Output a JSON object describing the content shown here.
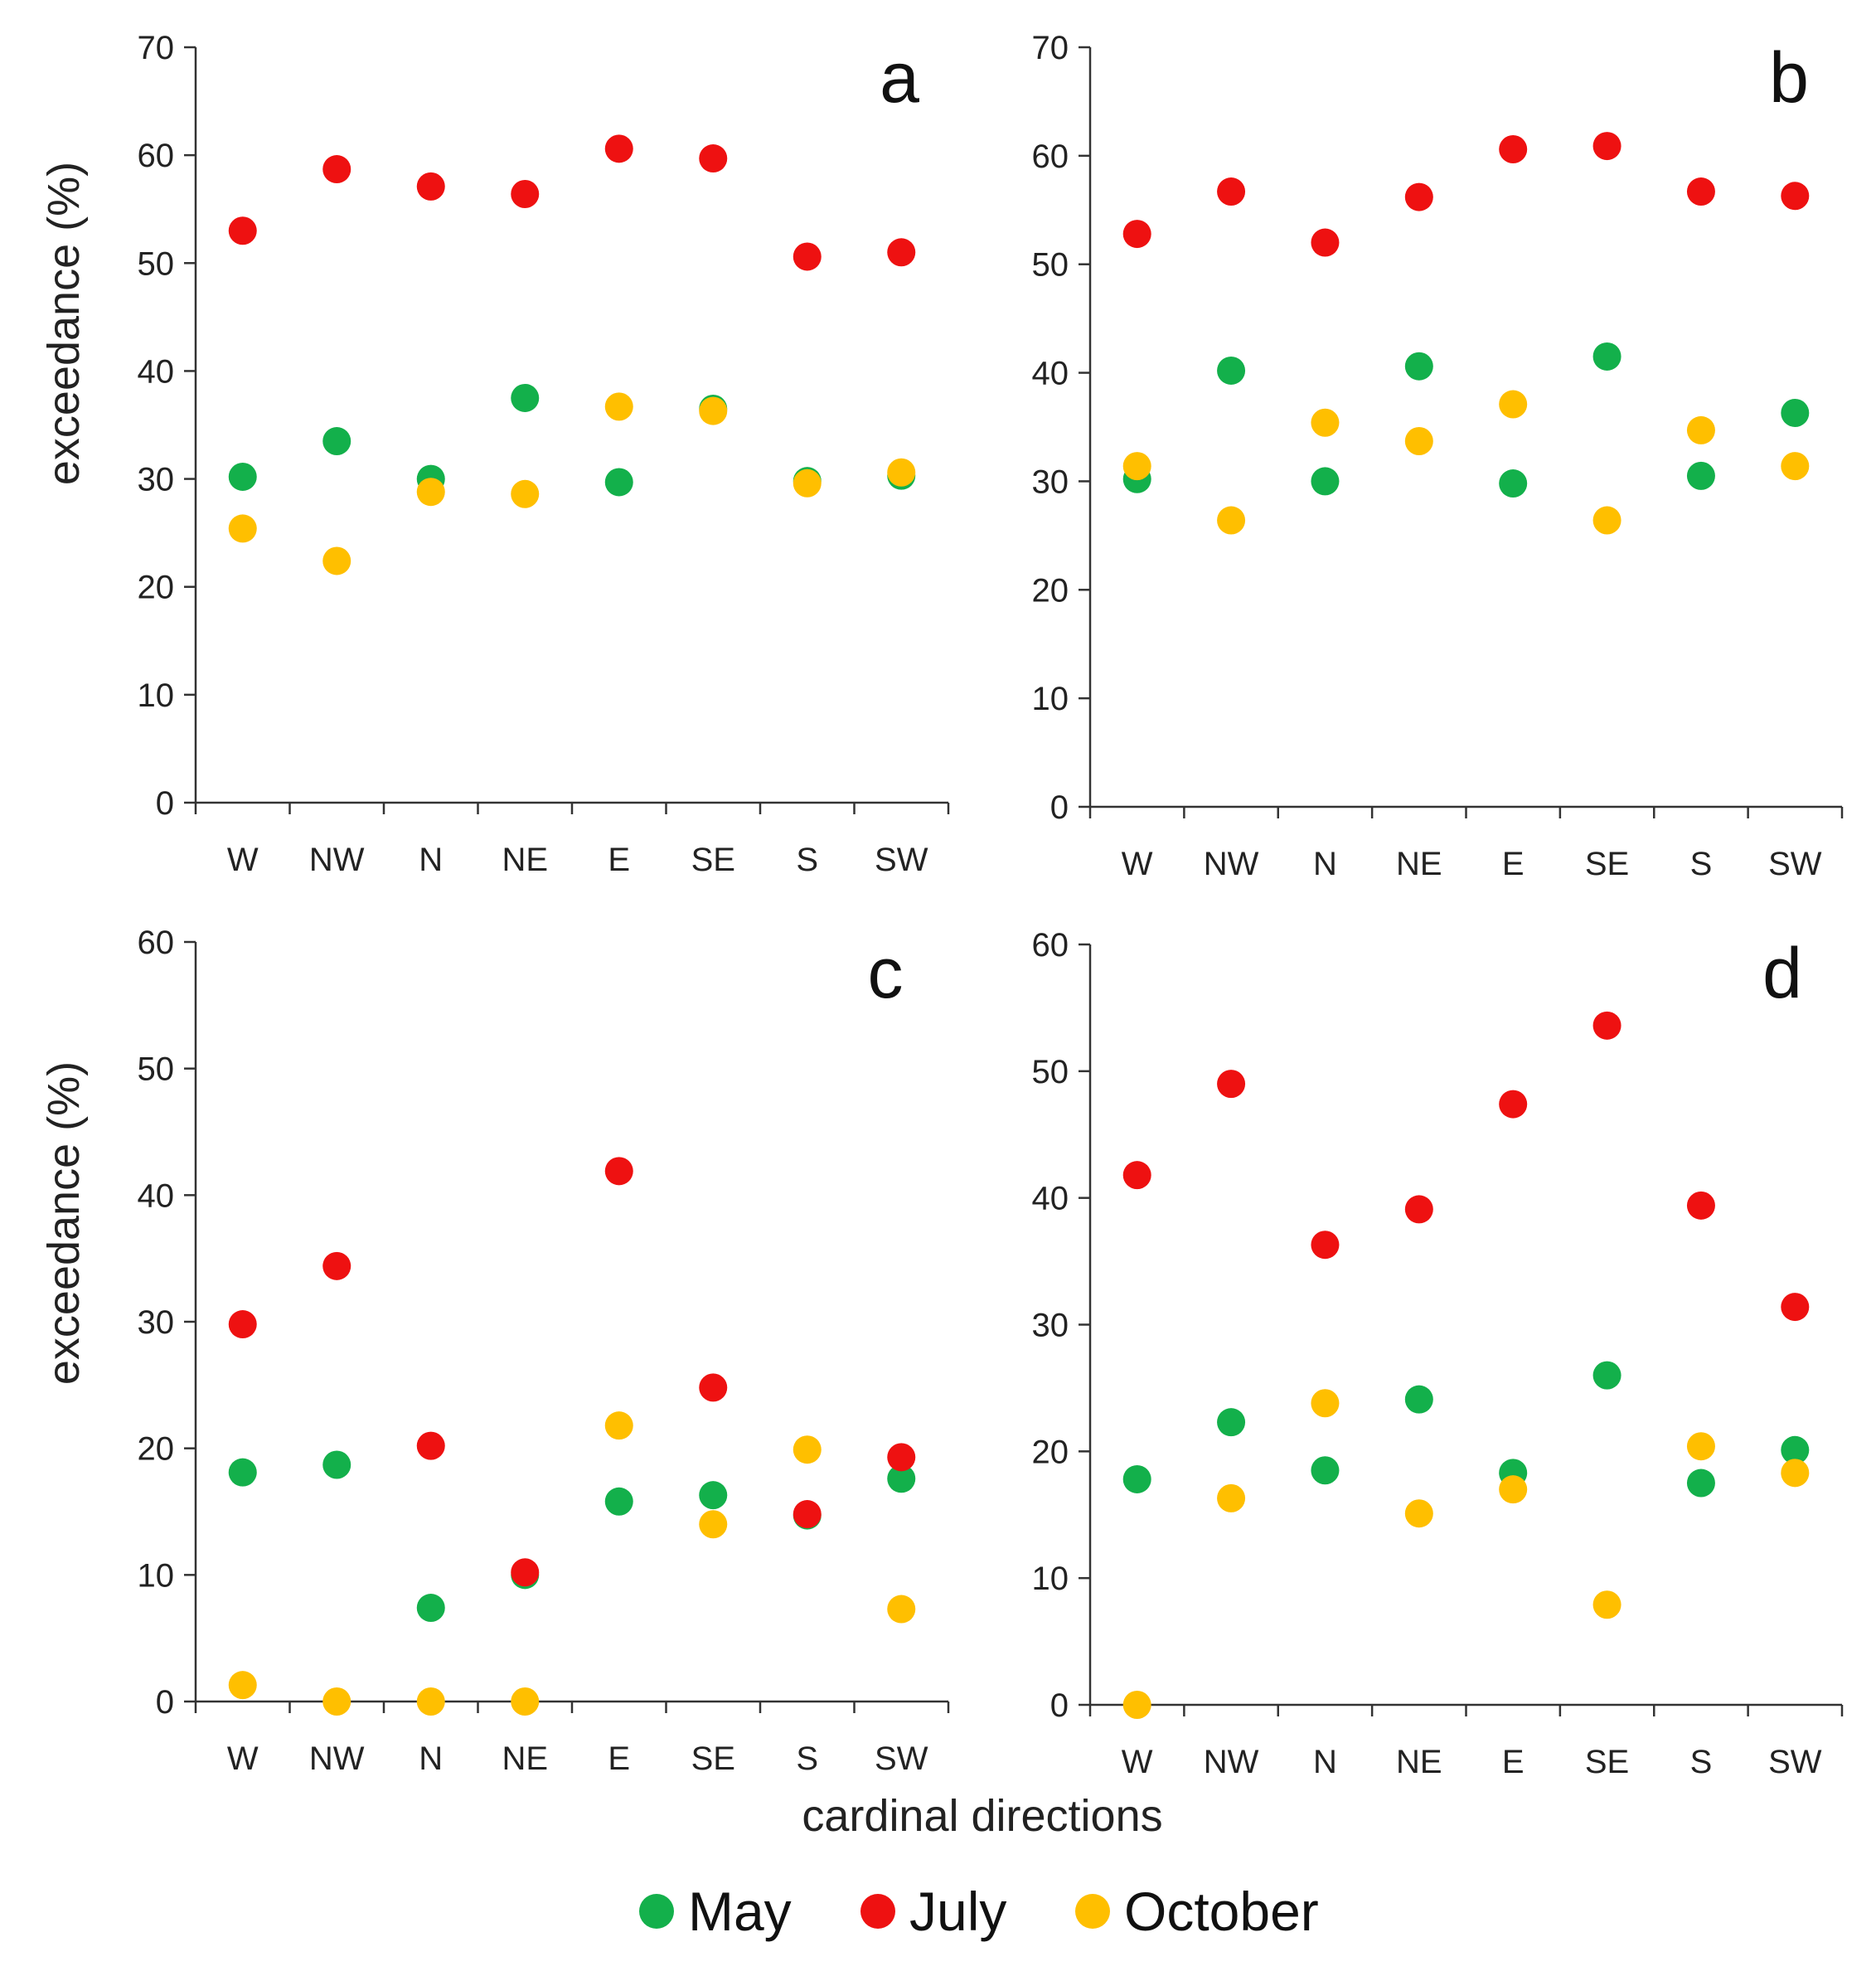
{
  "colors": {
    "May": "#13b04b",
    "July": "#ee1111",
    "October": "#ffbf00",
    "axis": "#333333"
  },
  "chart_data": [
    {
      "type": "scatter",
      "panel": "a",
      "categories": [
        "W",
        "NW",
        "N",
        "NE",
        "E",
        "SE",
        "S",
        "SW"
      ],
      "ylabel": "exceedance (%)",
      "xlabel": "",
      "ylim": [
        0,
        70
      ],
      "yticks": [
        0,
        10,
        20,
        30,
        40,
        50,
        60,
        70
      ],
      "series": [
        {
          "name": "May",
          "values": [
            30.2,
            33.5,
            30.0,
            37.5,
            29.7,
            36.5,
            29.8,
            30.3
          ]
        },
        {
          "name": "July",
          "values": [
            53.0,
            58.7,
            57.1,
            56.4,
            60.6,
            59.7,
            50.6,
            51.0
          ]
        },
        {
          "name": "October",
          "values": [
            25.4,
            22.4,
            28.8,
            28.6,
            36.7,
            36.3,
            29.6,
            30.6
          ]
        }
      ]
    },
    {
      "type": "scatter",
      "panel": "b",
      "categories": [
        "W",
        "NW",
        "N",
        "NE",
        "E",
        "SE",
        "S",
        "SW"
      ],
      "ylabel": "",
      "xlabel": "",
      "ylim": [
        0,
        70
      ],
      "yticks": [
        0,
        10,
        20,
        30,
        40,
        50,
        60,
        70
      ],
      "series": [
        {
          "name": "May",
          "values": [
            30.2,
            40.2,
            30.0,
            40.6,
            29.8,
            41.5,
            30.5,
            36.3
          ]
        },
        {
          "name": "July",
          "values": [
            52.8,
            56.7,
            52.0,
            56.2,
            60.6,
            60.9,
            56.7,
            56.3
          ]
        },
        {
          "name": "October",
          "values": [
            31.4,
            26.4,
            35.4,
            33.7,
            37.1,
            26.4,
            34.7,
            31.4
          ]
        }
      ]
    },
    {
      "type": "scatter",
      "panel": "c",
      "categories": [
        "W",
        "NW",
        "N",
        "NE",
        "E",
        "SE",
        "S",
        "SW"
      ],
      "ylabel": "exceedance (%)",
      "xlabel": "",
      "ylim": [
        0,
        60
      ],
      "yticks": [
        0,
        10,
        20,
        30,
        40,
        50,
        60
      ],
      "series": [
        {
          "name": "May",
          "values": [
            18.1,
            18.7,
            7.4,
            10.0,
            15.8,
            16.3,
            14.7,
            17.6
          ]
        },
        {
          "name": "July",
          "values": [
            29.8,
            34.4,
            20.2,
            10.2,
            41.9,
            24.8,
            14.8,
            19.3
          ]
        },
        {
          "name": "October",
          "values": [
            1.3,
            0.0,
            0.0,
            0.0,
            21.8,
            14.0,
            19.9,
            7.3
          ]
        }
      ]
    },
    {
      "type": "scatter",
      "panel": "d",
      "categories": [
        "W",
        "NW",
        "N",
        "NE",
        "E",
        "SE",
        "S",
        "SW"
      ],
      "ylabel": "",
      "xlabel": "",
      "ylim": [
        0,
        60
      ],
      "yticks": [
        0,
        10,
        20,
        30,
        40,
        50,
        60
      ],
      "series": [
        {
          "name": "May",
          "values": [
            17.8,
            22.3,
            18.5,
            24.1,
            18.3,
            26.0,
            17.5,
            20.1
          ]
        },
        {
          "name": "July",
          "values": [
            41.8,
            49.0,
            36.3,
            39.1,
            47.4,
            53.6,
            39.4,
            31.4
          ]
        },
        {
          "name": "October",
          "values": [
            0.0,
            16.3,
            23.8,
            15.1,
            17.0,
            7.9,
            20.4,
            18.3
          ]
        }
      ]
    }
  ],
  "figure": {
    "shared_xlabel": "cardinal directions",
    "legend": [
      {
        "name": "May",
        "label": "May"
      },
      {
        "name": "July",
        "label": "July"
      },
      {
        "name": "October",
        "label": "October"
      }
    ]
  }
}
